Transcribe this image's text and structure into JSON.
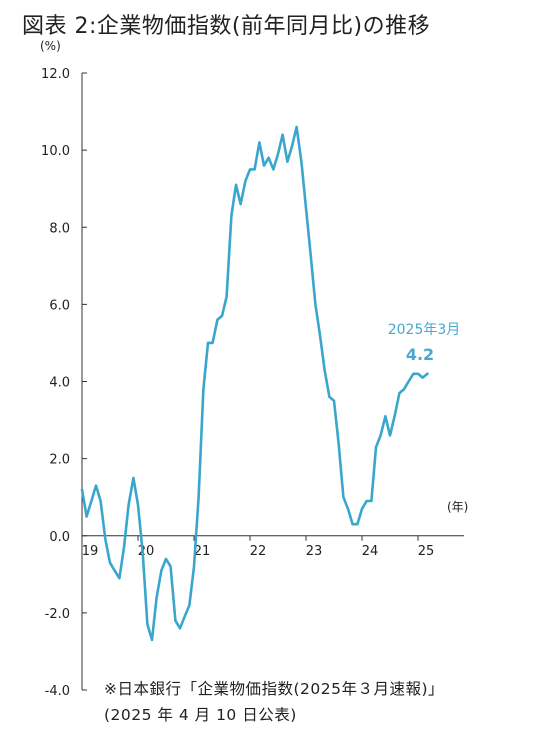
{
  "title": "図表 2:企業物価指数(前年同月比)の推移",
  "source_line1": "※日本銀行「企業物価指数(2025年３月速報)」",
  "source_line2": "(2025 年 4 月 10 日公表)",
  "colors": {
    "line": "#3aa6cc",
    "annotation": "#4aa8d0",
    "axis": "#333333",
    "text": "#222222"
  },
  "chart_data": {
    "type": "line",
    "title": "",
    "ylabel": "(%)",
    "xlabel": "(年)",
    "ylim": [
      -4.0,
      12.0
    ],
    "y_ticks": [
      "12.0",
      "10.0",
      "8.0",
      "6.0",
      "4.0",
      "2.0",
      "0.0",
      "-2.0",
      "-4.0"
    ],
    "y_tick_values": [
      12,
      10,
      8,
      6,
      4,
      2,
      0,
      -2,
      -4
    ],
    "x_ticks": [
      "19",
      "20",
      "21",
      "22",
      "23",
      "24",
      "25"
    ],
    "x_tick_values": [
      2019,
      2020,
      2021,
      2022,
      2023,
      2024,
      2025
    ],
    "xlim": [
      2019.0,
      2026.0
    ],
    "grid": false,
    "annotation": {
      "label": "2025年3月",
      "value": "4.2"
    },
    "series": [
      {
        "x": [
          2019.0,
          2019.083,
          2019.167,
          2019.25,
          2019.333,
          2019.417,
          2019.5,
          2019.583,
          2019.667,
          2019.75,
          2019.833,
          2019.917,
          2020.0,
          2020.083,
          2020.167,
          2020.25,
          2020.333,
          2020.417,
          2020.5,
          2020.583,
          2020.667,
          2020.75,
          2020.833,
          2020.917,
          2021.0,
          2021.083,
          2021.167,
          2021.25,
          2021.333,
          2021.417,
          2021.5,
          2021.583,
          2021.667,
          2021.75,
          2021.833,
          2021.917,
          2022.0,
          2022.083,
          2022.167,
          2022.25,
          2022.333,
          2022.417,
          2022.5,
          2022.583,
          2022.667,
          2022.75,
          2022.833,
          2022.917,
          2023.0,
          2023.083,
          2023.167,
          2023.25,
          2023.333,
          2023.417,
          2023.5,
          2023.583,
          2023.667,
          2023.75,
          2023.833,
          2023.917,
          2024.0,
          2024.083,
          2024.167,
          2024.25,
          2024.333,
          2024.417,
          2024.5,
          2024.583,
          2024.667,
          2024.75,
          2024.833,
          2024.917,
          2025.0,
          2025.083,
          2025.167
        ],
        "y": [
          1.2,
          0.5,
          0.9,
          1.3,
          0.9,
          -0.1,
          -0.7,
          -0.9,
          -1.1,
          -0.3,
          0.8,
          1.5,
          0.8,
          -0.4,
          -2.3,
          -2.7,
          -1.6,
          -0.9,
          -0.6,
          -0.8,
          -2.2,
          -2.4,
          -2.1,
          -1.8,
          -0.8,
          1.0,
          3.8,
          5.0,
          5.0,
          5.6,
          5.7,
          6.2,
          8.3,
          9.1,
          8.6,
          9.2,
          9.5,
          9.5,
          10.2,
          9.6,
          9.8,
          9.5,
          9.9,
          10.4,
          9.7,
          10.1,
          10.6,
          9.7,
          8.5,
          7.3,
          6.0,
          5.2,
          4.3,
          3.6,
          3.5,
          2.4,
          1.0,
          0.7,
          0.3,
          0.3,
          0.7,
          0.9,
          0.9,
          2.3,
          2.6,
          3.1,
          2.6,
          3.1,
          3.7,
          3.8,
          4.0,
          4.2,
          4.2,
          4.1,
          4.2
        ]
      }
    ]
  }
}
